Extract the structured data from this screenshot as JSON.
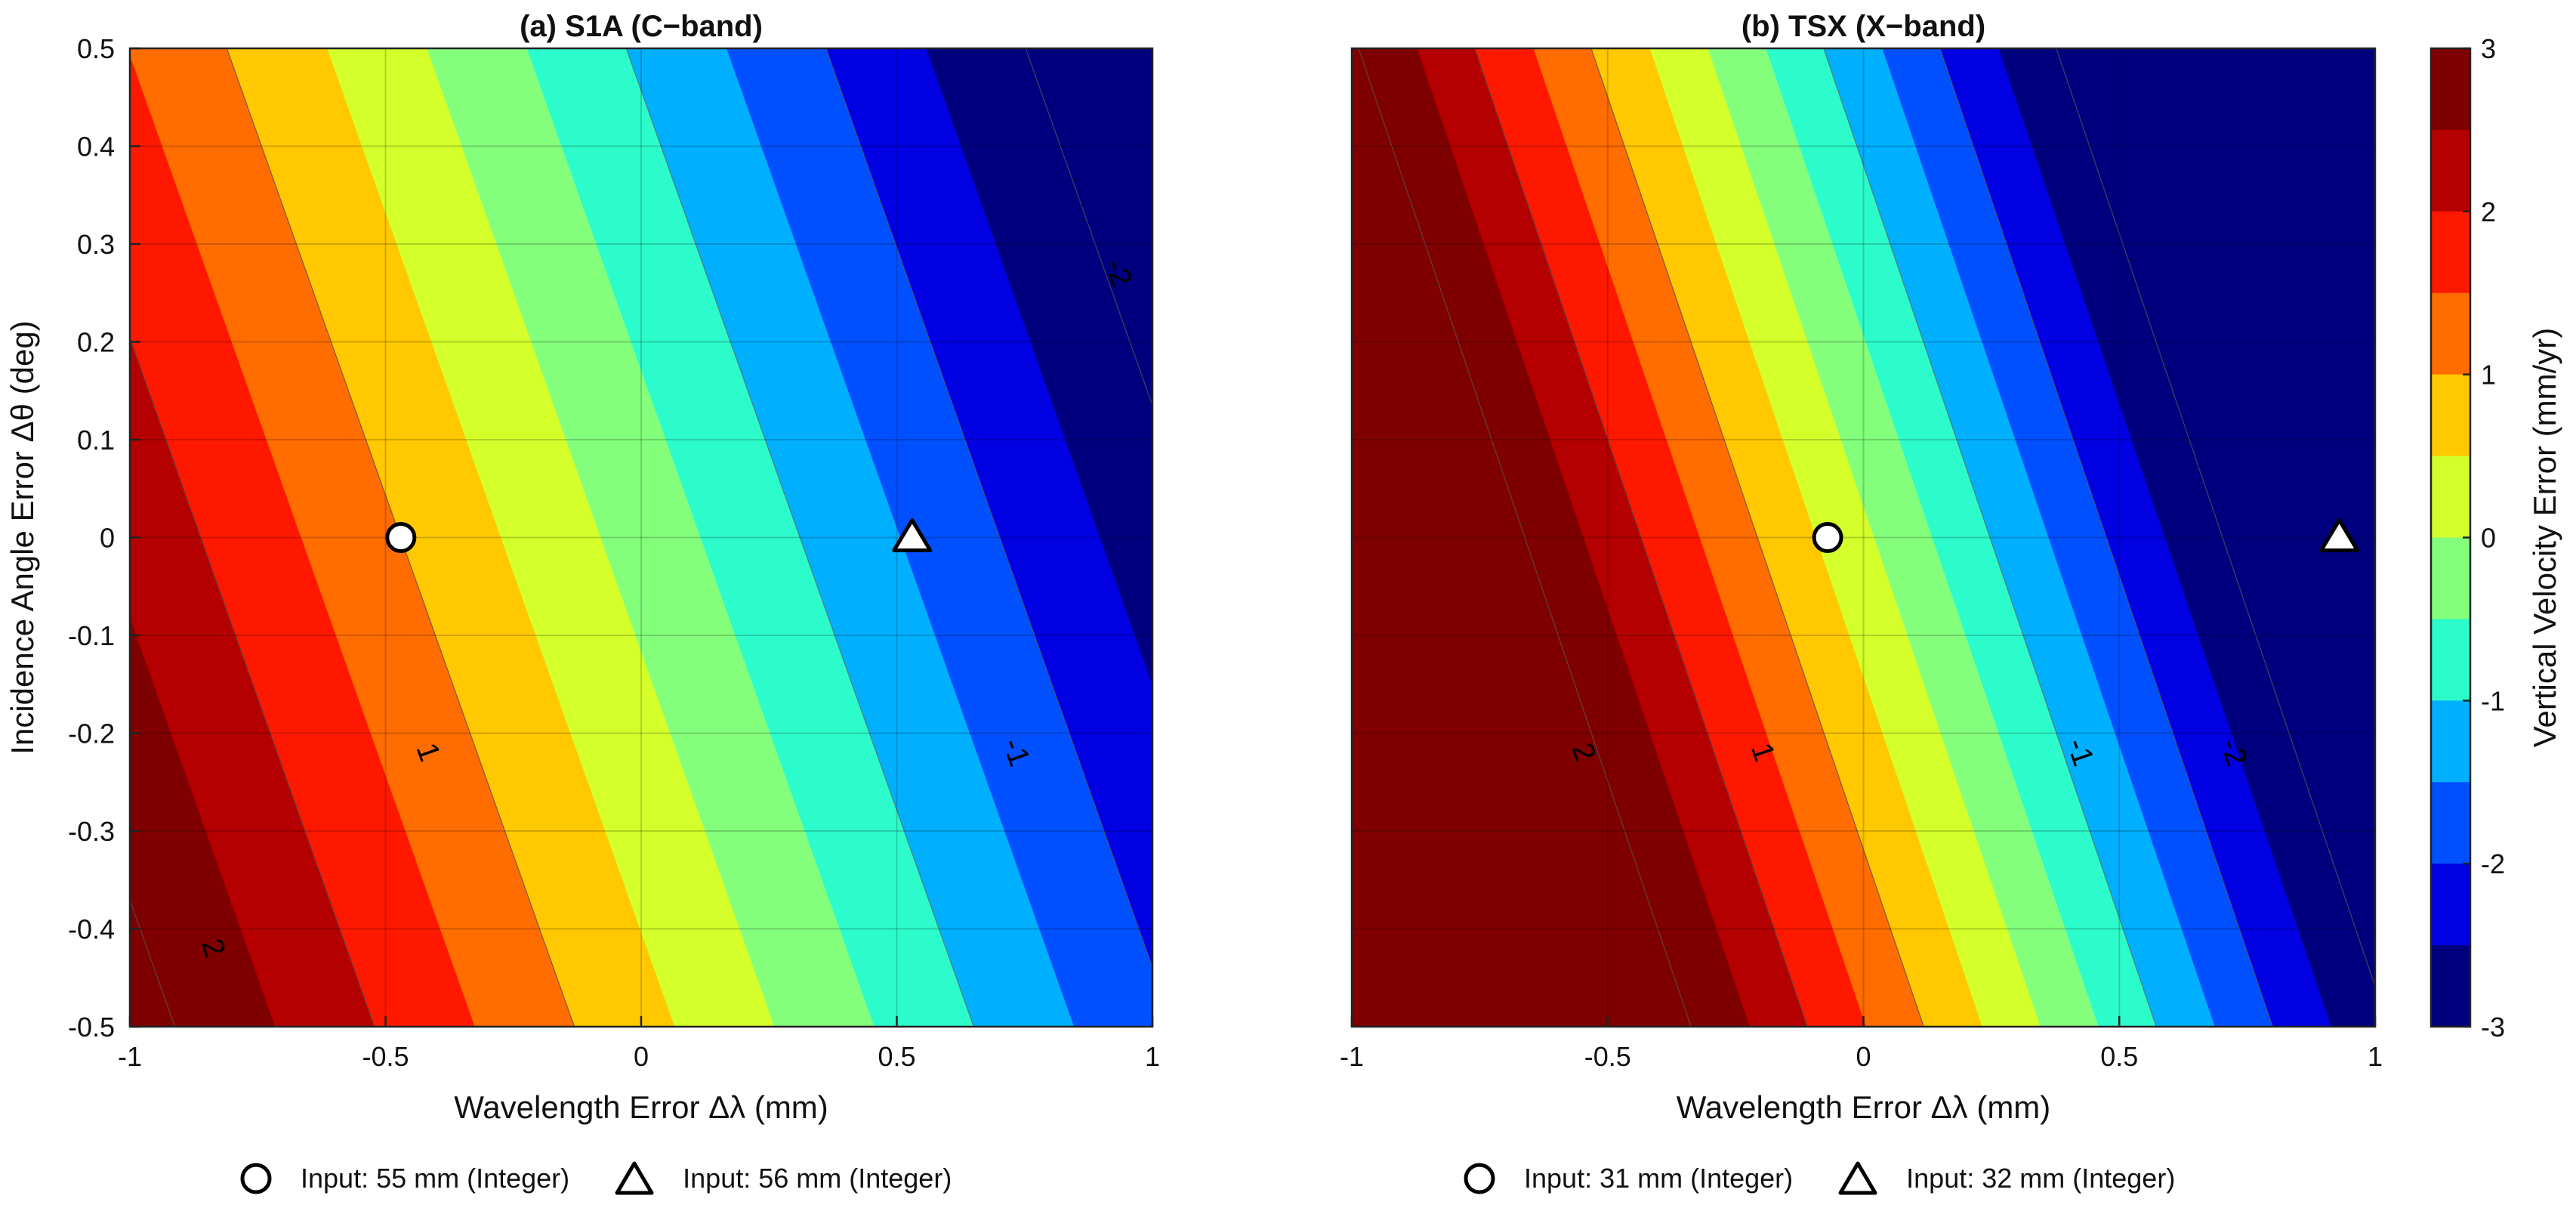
{
  "colorbar": {
    "label": "Vertical Velocity Error (mm/yr)",
    "ticks": [
      3,
      2,
      1,
      0,
      -1,
      -2,
      -3
    ],
    "tick_labels": [
      "3",
      "2",
      "1",
      "0",
      "-1",
      "-2",
      "-3"
    ],
    "range": [
      -3,
      3
    ],
    "palette": [
      "#00007f",
      "#0000e3",
      "#0050ff",
      "#00b0ff",
      "#2cfccb",
      "#83ff7b",
      "#d4ff2a",
      "#ffc800",
      "#ff6c00",
      "#ff1800",
      "#b40000",
      "#7f0000"
    ]
  },
  "chart_data": [
    {
      "type": "filled_contour",
      "title": "(a) S1A (C−band)",
      "xlabel": "Wavelength Error Δλ (mm)",
      "ylabel": "Incidence Angle Error Δθ (deg)",
      "xlim": [
        -1,
        1
      ],
      "ylim": [
        -0.5,
        0.5
      ],
      "xticks": [
        -1,
        -0.5,
        0,
        0.5,
        1
      ],
      "xtick_labels": [
        "-1",
        "-0.5",
        "0",
        "0.5",
        "1"
      ],
      "yticks": [
        0.5,
        0.4,
        0.3,
        0.2,
        0.1,
        0,
        -0.1,
        -0.2,
        -0.3,
        -0.4,
        -0.5
      ],
      "ytick_labels": [
        "0.5",
        "0.4",
        "0.3",
        "0.2",
        "0.1",
        "0",
        "-0.1",
        "-0.2",
        "-0.3",
        "-0.4",
        "-0.5"
      ],
      "grid": true,
      "field": {
        "zero_crossing_x": -0.08,
        "x_slope": -2.56,
        "y_slope": -1.74
      },
      "contour_levels": [
        -3,
        -2.5,
        -2,
        -1.5,
        -1,
        -0.5,
        0,
        0.5,
        1,
        1.5,
        2,
        2.5,
        3
      ],
      "contour_labels": [
        {
          "text": "1",
          "x": -0.42,
          "y": -0.22
        },
        {
          "text": "2",
          "x": -0.84,
          "y": -0.42
        },
        {
          "text": "-1",
          "x": 0.73,
          "y": -0.22
        },
        {
          "text": "-2",
          "x": 0.93,
          "y": 0.27
        }
      ],
      "markers": [
        {
          "shape": "circle",
          "x": -0.47,
          "y": 0.0
        },
        {
          "shape": "triangle",
          "x": 0.53,
          "y": 0.0
        }
      ],
      "legend": [
        {
          "shape": "circle",
          "label": "Input: 55 mm (Integer)"
        },
        {
          "shape": "triangle",
          "label": "Input: 56 mm (Integer)"
        }
      ]
    },
    {
      "type": "filled_contour",
      "title": "(b) TSX (X−band)",
      "xlabel": "Wavelength Error Δλ (mm)",
      "ylabel": "",
      "xlim": [
        -1,
        1
      ],
      "ylim": [
        -0.5,
        0.5
      ],
      "xticks": [
        -1,
        -0.5,
        0,
        0.5,
        1
      ],
      "xtick_labels": [
        "-1",
        "-0.5",
        "0",
        "0.5",
        "1"
      ],
      "yticks": [],
      "ytick_labels": [],
      "grid": true,
      "field": {
        "zero_crossing_x": 0.02,
        "x_slope": -4.4,
        "y_slope": -2.86
      },
      "contour_levels": [
        -3,
        -2.5,
        -2,
        -1.5,
        -1,
        -0.5,
        0,
        0.5,
        1,
        1.5,
        2,
        2.5,
        3
      ],
      "contour_labels": [
        {
          "text": "1",
          "x": -0.2,
          "y": -0.22
        },
        {
          "text": "2",
          "x": -0.55,
          "y": -0.22
        },
        {
          "text": "-1",
          "x": 0.42,
          "y": -0.22
        },
        {
          "text": "-2",
          "x": 0.72,
          "y": -0.22
        }
      ],
      "markers": [
        {
          "shape": "circle",
          "x": -0.07,
          "y": 0.0
        },
        {
          "shape": "triangle",
          "x": 0.93,
          "y": 0.0
        }
      ],
      "legend": [
        {
          "shape": "circle",
          "label": "Input: 31 mm (Integer)"
        },
        {
          "shape": "triangle",
          "label": "Input: 32 mm (Integer)"
        }
      ]
    }
  ]
}
